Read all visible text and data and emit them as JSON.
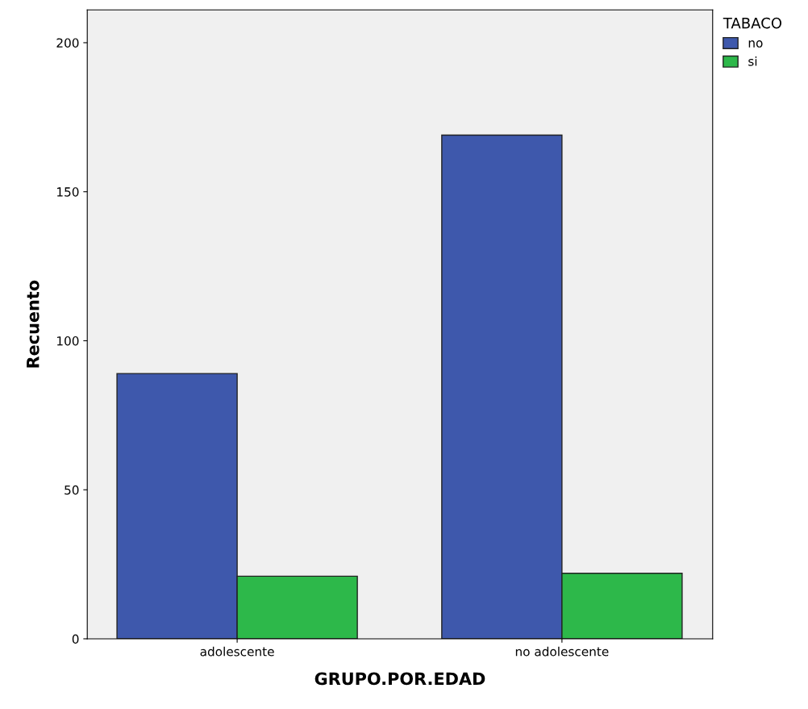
{
  "chart_data": {
    "type": "bar",
    "xlabel": "GRUPO.POR.EDAD",
    "ylabel": "Recuento",
    "legend_title": "TABACO",
    "categories": [
      "adolescente",
      "no adolescente"
    ],
    "series": [
      {
        "name": "no",
        "color": "#3e58ac",
        "values": [
          89,
          169
        ]
      },
      {
        "name": "si",
        "color": "#2db84a",
        "values": [
          21,
          22
        ]
      }
    ],
    "ylim": [
      0,
      211
    ],
    "yticks": [
      0,
      50,
      100,
      150,
      200
    ],
    "grid": false,
    "legend": "top right"
  }
}
